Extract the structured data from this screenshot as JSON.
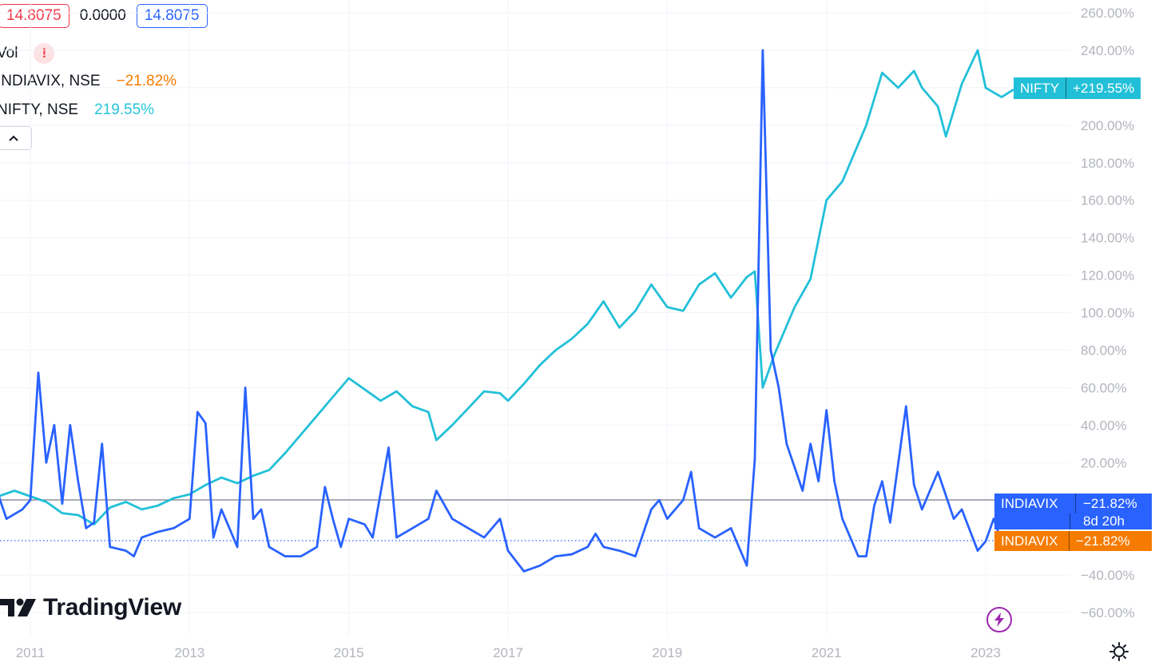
{
  "legend": {
    "ohlc": {
      "left_value": "14.8075",
      "change": "0.0000",
      "right_value": "14.8075"
    },
    "vol_label": "Vol",
    "warning_glyph": "!",
    "series": [
      {
        "label": "INDIAVIX, NSE",
        "value": "−21.82%",
        "color": "#f57c00"
      },
      {
        "label": "NIFTY, NSE",
        "value": "219.55%",
        "color": "#26c6da"
      }
    ]
  },
  "logo": {
    "text": "TradingView"
  },
  "tags": {
    "nifty": {
      "name": "NIFTY",
      "value": "+219.55%",
      "color": "#22c0d8"
    },
    "indiavix_blue": {
      "name": "INDIAVIX",
      "value": "−21.82%",
      "countdown": "8d 20h",
      "color": "#2962ff"
    },
    "indiavix_orange": {
      "name": "INDIAVIX",
      "value": "−21.82%",
      "color": "#f57c00"
    }
  },
  "chart_data": {
    "type": "line",
    "y_axis": {
      "unit": "%",
      "ylim": [
        -60,
        260
      ],
      "ticks": [
        "260.00%",
        "240.00%",
        "220.00%",
        "200.00%",
        "180.00%",
        "160.00%",
        "140.00%",
        "120.00%",
        "100.00%",
        "80.00%",
        "60.00%",
        "40.00%",
        "20.00%",
        "−40.00%",
        "−60.00%"
      ]
    },
    "x_axis": {
      "ticks": [
        "2011",
        "2013",
        "2015",
        "2017",
        "2019",
        "2021",
        "2023"
      ]
    },
    "grid": true,
    "series": [
      {
        "name": "NIFTY",
        "color": "#22c0d8",
        "points": [
          [
            2010.0,
            13
          ],
          [
            2010.2,
            12
          ],
          [
            2010.4,
            6
          ],
          [
            2010.6,
            2
          ],
          [
            2010.8,
            5
          ],
          [
            2011.0,
            2
          ],
          [
            2011.2,
            -1
          ],
          [
            2011.4,
            -7
          ],
          [
            2011.6,
            -8
          ],
          [
            2011.8,
            -13
          ],
          [
            2012.0,
            -4
          ],
          [
            2012.2,
            -1
          ],
          [
            2012.4,
            -5
          ],
          [
            2012.6,
            -3
          ],
          [
            2012.8,
            1
          ],
          [
            2013.0,
            3
          ],
          [
            2013.2,
            8
          ],
          [
            2013.4,
            12
          ],
          [
            2013.6,
            9
          ],
          [
            2013.8,
            13
          ],
          [
            2014.0,
            16
          ],
          [
            2014.2,
            25
          ],
          [
            2014.4,
            35
          ],
          [
            2014.6,
            45
          ],
          [
            2014.8,
            55
          ],
          [
            2015.0,
            65
          ],
          [
            2015.2,
            59
          ],
          [
            2015.4,
            53
          ],
          [
            2015.6,
            58
          ],
          [
            2015.8,
            50
          ],
          [
            2016.0,
            47
          ],
          [
            2016.1,
            32
          ],
          [
            2016.3,
            40
          ],
          [
            2016.5,
            49
          ],
          [
            2016.7,
            58
          ],
          [
            2016.9,
            57
          ],
          [
            2017.0,
            53
          ],
          [
            2017.2,
            62
          ],
          [
            2017.4,
            72
          ],
          [
            2017.6,
            80
          ],
          [
            2017.8,
            86
          ],
          [
            2018.0,
            94
          ],
          [
            2018.2,
            106
          ],
          [
            2018.4,
            92
          ],
          [
            2018.6,
            101
          ],
          [
            2018.8,
            115
          ],
          [
            2019.0,
            103
          ],
          [
            2019.2,
            101
          ],
          [
            2019.4,
            115
          ],
          [
            2019.6,
            121
          ],
          [
            2019.8,
            108
          ],
          [
            2020.0,
            119
          ],
          [
            2020.1,
            122
          ],
          [
            2020.2,
            60
          ],
          [
            2020.35,
            78
          ],
          [
            2020.6,
            103
          ],
          [
            2020.8,
            118
          ],
          [
            2021.0,
            160
          ],
          [
            2021.2,
            170
          ],
          [
            2021.4,
            190
          ],
          [
            2021.5,
            200
          ],
          [
            2021.7,
            228
          ],
          [
            2021.9,
            220
          ],
          [
            2022.1,
            229
          ],
          [
            2022.2,
            220
          ],
          [
            2022.4,
            210
          ],
          [
            2022.5,
            194
          ],
          [
            2022.7,
            222
          ],
          [
            2022.9,
            240
          ],
          [
            2023.0,
            220
          ],
          [
            2023.2,
            215
          ],
          [
            2023.35,
            219
          ]
        ]
      },
      {
        "name": "INDIAVIX",
        "color": "#2962ff",
        "points": [
          [
            2010.0,
            18
          ],
          [
            2010.1,
            12
          ],
          [
            2010.2,
            -10
          ],
          [
            2010.3,
            23
          ],
          [
            2010.4,
            27
          ],
          [
            2010.5,
            15
          ],
          [
            2010.7,
            -10
          ],
          [
            2010.9,
            -5
          ],
          [
            2011.0,
            0
          ],
          [
            2011.1,
            68
          ],
          [
            2011.2,
            20
          ],
          [
            2011.3,
            40
          ],
          [
            2011.4,
            -2
          ],
          [
            2011.5,
            40
          ],
          [
            2011.6,
            10
          ],
          [
            2011.7,
            -15
          ],
          [
            2011.8,
            -12
          ],
          [
            2011.9,
            30
          ],
          [
            2012.0,
            -25
          ],
          [
            2012.2,
            -27
          ],
          [
            2012.3,
            -30
          ],
          [
            2012.4,
            -20
          ],
          [
            2012.6,
            -17
          ],
          [
            2012.8,
            -15
          ],
          [
            2013.0,
            -10
          ],
          [
            2013.1,
            47
          ],
          [
            2013.2,
            41
          ],
          [
            2013.3,
            -20
          ],
          [
            2013.4,
            -5
          ],
          [
            2013.5,
            -15
          ],
          [
            2013.6,
            -25
          ],
          [
            2013.7,
            60
          ],
          [
            2013.8,
            -10
          ],
          [
            2013.9,
            -5
          ],
          [
            2014.0,
            -25
          ],
          [
            2014.2,
            -30
          ],
          [
            2014.4,
            -30
          ],
          [
            2014.6,
            -25
          ],
          [
            2014.7,
            7
          ],
          [
            2014.8,
            -10
          ],
          [
            2014.9,
            -25
          ],
          [
            2015.0,
            -10
          ],
          [
            2015.2,
            -13
          ],
          [
            2015.3,
            -20
          ],
          [
            2015.5,
            28
          ],
          [
            2015.6,
            -20
          ],
          [
            2015.8,
            -15
          ],
          [
            2016.0,
            -10
          ],
          [
            2016.1,
            5
          ],
          [
            2016.3,
            -10
          ],
          [
            2016.5,
            -15
          ],
          [
            2016.7,
            -20
          ],
          [
            2016.9,
            -10
          ],
          [
            2017.0,
            -27
          ],
          [
            2017.2,
            -38
          ],
          [
            2017.4,
            -35
          ],
          [
            2017.6,
            -30
          ],
          [
            2017.8,
            -29
          ],
          [
            2018.0,
            -25
          ],
          [
            2018.1,
            -18
          ],
          [
            2018.2,
            -25
          ],
          [
            2018.4,
            -27
          ],
          [
            2018.6,
            -30
          ],
          [
            2018.8,
            -5
          ],
          [
            2018.9,
            0
          ],
          [
            2019.0,
            -10
          ],
          [
            2019.2,
            0
          ],
          [
            2019.3,
            15
          ],
          [
            2019.4,
            -15
          ],
          [
            2019.6,
            -20
          ],
          [
            2019.8,
            -15
          ],
          [
            2020.0,
            -35
          ],
          [
            2020.1,
            22
          ],
          [
            2020.2,
            240
          ],
          [
            2020.3,
            80
          ],
          [
            2020.4,
            60
          ],
          [
            2020.5,
            30
          ],
          [
            2020.7,
            5
          ],
          [
            2020.8,
            30
          ],
          [
            2020.9,
            10
          ],
          [
            2021.0,
            48
          ],
          [
            2021.1,
            10
          ],
          [
            2021.2,
            -10
          ],
          [
            2021.4,
            -30
          ],
          [
            2021.5,
            -30
          ],
          [
            2021.6,
            -3
          ],
          [
            2021.7,
            10
          ],
          [
            2021.8,
            -12
          ],
          [
            2022.0,
            50
          ],
          [
            2022.1,
            8
          ],
          [
            2022.2,
            -5
          ],
          [
            2022.4,
            15
          ],
          [
            2022.6,
            -10
          ],
          [
            2022.7,
            -5
          ],
          [
            2022.9,
            -27
          ],
          [
            2023.0,
            -22
          ],
          [
            2023.1,
            -10
          ],
          [
            2023.2,
            -22
          ]
        ]
      }
    ],
    "reference_levels": [
      {
        "name": "INDIAVIX",
        "value": -21.82,
        "style": "dotted",
        "color": "#2962ff"
      },
      {
        "name": "INDIAVIX",
        "value": -21.82,
        "style": "solid",
        "color": "#787b86"
      }
    ]
  }
}
